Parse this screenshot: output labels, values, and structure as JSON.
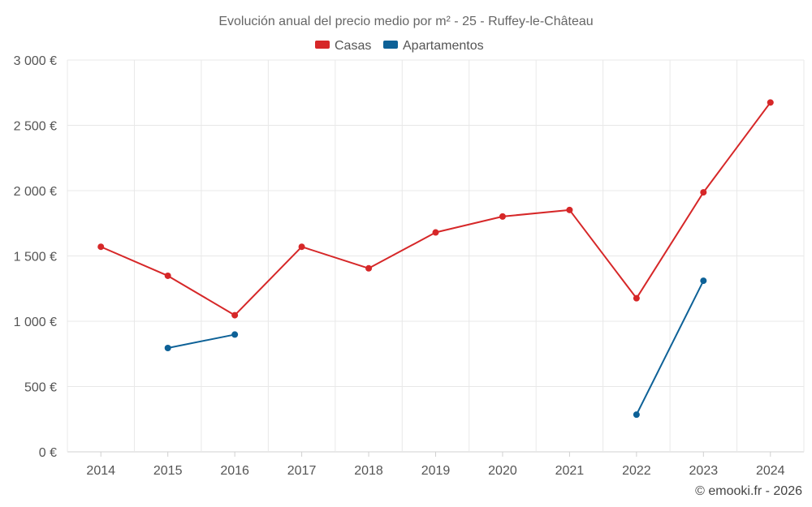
{
  "chart_data": {
    "type": "line",
    "title": "Evolución anual del precio medio por m² - 25 - Ruffey-le-Château",
    "categories": [
      "2014",
      "2015",
      "2016",
      "2017",
      "2018",
      "2019",
      "2020",
      "2021",
      "2022",
      "2023",
      "2024"
    ],
    "series": [
      {
        "name": "Casas",
        "color": "#d62728",
        "values": [
          1570,
          1348,
          1046,
          1570,
          1405,
          1680,
          1802,
          1852,
          1176,
          1987,
          2675
        ]
      },
      {
        "name": "Apartamentos",
        "color": "#0d6197",
        "values": [
          null,
          795,
          898,
          null,
          null,
          null,
          null,
          null,
          285,
          1310,
          null
        ]
      }
    ],
    "ylim": [
      0,
      3000
    ],
    "yticks": [
      0,
      500,
      1000,
      1500,
      2000,
      2500,
      3000
    ],
    "ytick_labels": [
      "0 €",
      "500 €",
      "1 000 €",
      "1 500 €",
      "2 000 €",
      "2 500 €",
      "3 000 €"
    ],
    "xlabel": "",
    "ylabel": "",
    "grid": true,
    "legend_position": "top-center"
  },
  "credit": "© emooki.fr - 2026"
}
